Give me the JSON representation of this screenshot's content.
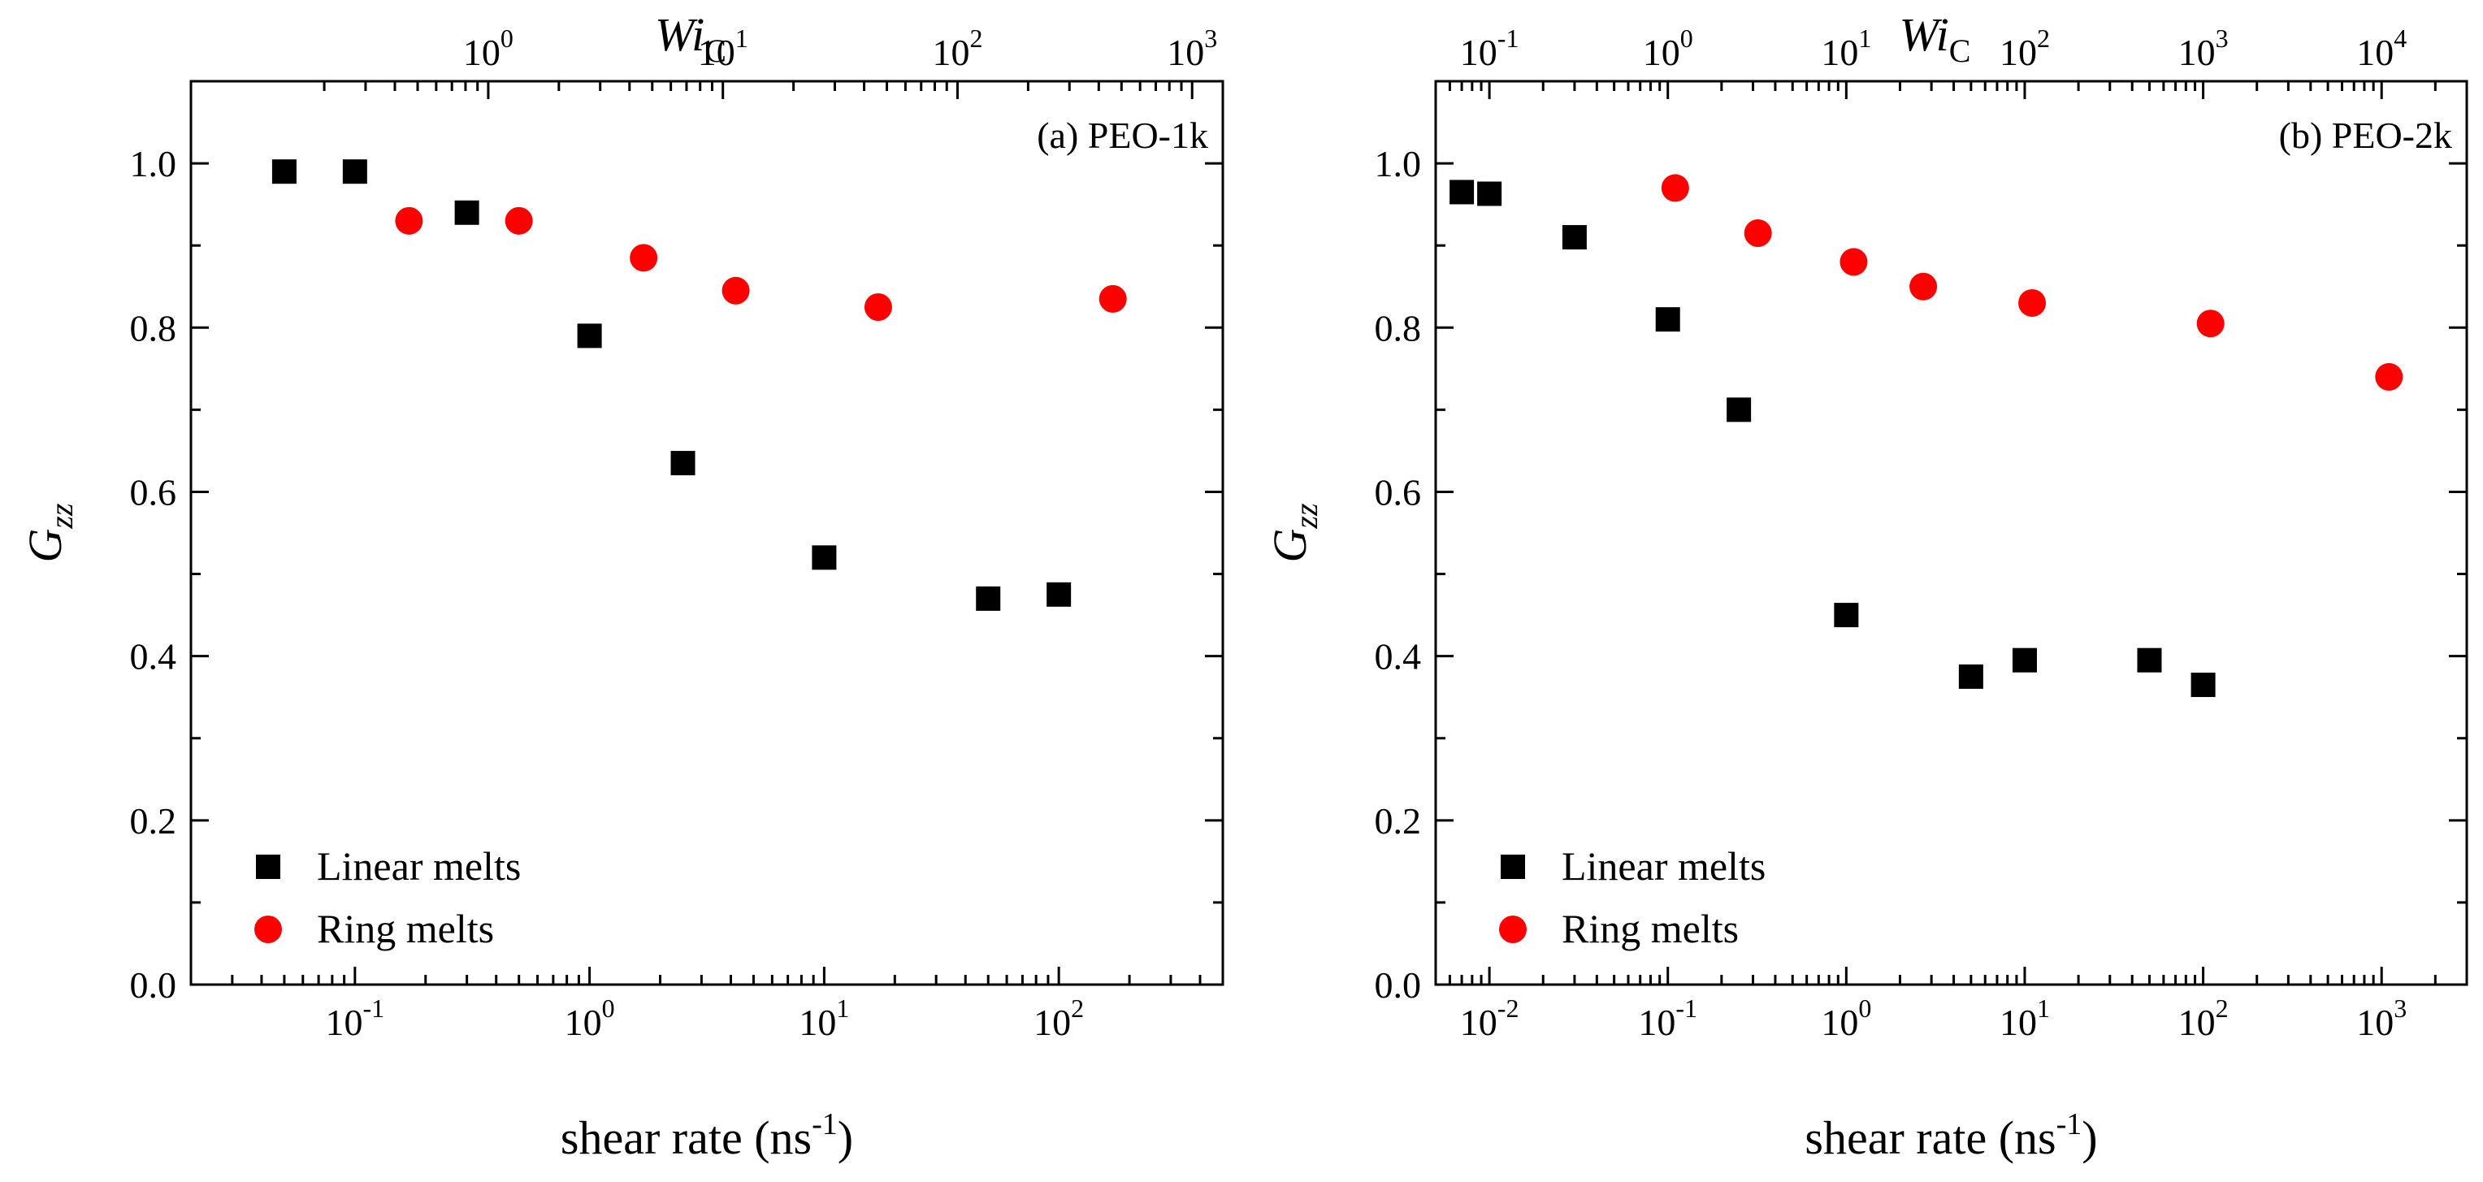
{
  "chart_data": [
    {
      "type": "scatter",
      "panel_label": "(a) PEO-1k",
      "xlabel_pre": "shear rate (ns",
      "xlabel_exp": "-1",
      "xlabel_post": ")",
      "ylabel_main": "G",
      "ylabel_sub": "zz",
      "top_xlabel_main": "Wi",
      "top_xlabel_sub": "C",
      "xscale": "log",
      "xlim": [
        0.02,
        500
      ],
      "ylim": [
        0.0,
        1.1
      ],
      "x_ticks": [
        {
          "value": 0.1,
          "base": "10",
          "exp": "-1"
        },
        {
          "value": 1,
          "base": "10",
          "exp": "0"
        },
        {
          "value": 10,
          "base": "10",
          "exp": "1"
        },
        {
          "value": 100,
          "base": "10",
          "exp": "2"
        }
      ],
      "y_ticks": [
        {
          "value": 0.0,
          "label": "0.0"
        },
        {
          "value": 0.2,
          "label": "0.2"
        },
        {
          "value": 0.4,
          "label": "0.4"
        },
        {
          "value": 0.6,
          "label": "0.6"
        },
        {
          "value": 0.8,
          "label": "0.8"
        },
        {
          "value": 1.0,
          "label": "1.0"
        }
      ],
      "top_ticks": [
        {
          "at_shear_rate": 0.37,
          "base": "10",
          "exp": "0"
        },
        {
          "at_shear_rate": 3.7,
          "base": "10",
          "exp": "1"
        },
        {
          "at_shear_rate": 37,
          "base": "10",
          "exp": "2"
        },
        {
          "at_shear_rate": 370,
          "base": "10",
          "exp": "3"
        }
      ],
      "legend_position": "bottom-left",
      "series": [
        {
          "name": "Linear melts",
          "marker": "square",
          "color": "#000000",
          "x": [
            0.05,
            0.1,
            0.3,
            1.0,
            2.5,
            10,
            50,
            100
          ],
          "y": [
            0.99,
            0.99,
            0.94,
            0.79,
            0.635,
            0.52,
            0.47,
            0.475
          ]
        },
        {
          "name": "Ring melts",
          "marker": "circle",
          "color": "#ff0000",
          "x": [
            0.17,
            0.5,
            1.7,
            4.2,
            17,
            170
          ],
          "y": [
            0.93,
            0.93,
            0.885,
            0.845,
            0.825,
            0.835
          ]
        }
      ]
    },
    {
      "type": "scatter",
      "panel_label": "(b) PEO-2k",
      "xlabel_pre": "shear rate (ns",
      "xlabel_exp": "-1",
      "xlabel_post": ")",
      "ylabel_main": "G",
      "ylabel_sub": "zz",
      "top_xlabel_main": "Wi",
      "top_xlabel_sub": "C",
      "xscale": "log",
      "xlim": [
        0.005,
        3000
      ],
      "ylim": [
        0.0,
        1.1
      ],
      "x_ticks": [
        {
          "value": 0.01,
          "base": "10",
          "exp": "-2"
        },
        {
          "value": 0.1,
          "base": "10",
          "exp": "-1"
        },
        {
          "value": 1,
          "base": "10",
          "exp": "0"
        },
        {
          "value": 10,
          "base": "10",
          "exp": "1"
        },
        {
          "value": 100,
          "base": "10",
          "exp": "2"
        },
        {
          "value": 1000,
          "base": "10",
          "exp": "3"
        }
      ],
      "y_ticks": [
        {
          "value": 0.0,
          "label": "0.0"
        },
        {
          "value": 0.2,
          "label": "0.2"
        },
        {
          "value": 0.4,
          "label": "0.4"
        },
        {
          "value": 0.6,
          "label": "0.6"
        },
        {
          "value": 0.8,
          "label": "0.8"
        },
        {
          "value": 1.0,
          "label": "1.0"
        }
      ],
      "top_ticks": [
        {
          "at_shear_rate": 0.01,
          "base": "10",
          "exp": "-1"
        },
        {
          "at_shear_rate": 0.1,
          "base": "10",
          "exp": "0"
        },
        {
          "at_shear_rate": 1,
          "base": "10",
          "exp": "1"
        },
        {
          "at_shear_rate": 10,
          "base": "10",
          "exp": "2"
        },
        {
          "at_shear_rate": 100,
          "base": "10",
          "exp": "3"
        },
        {
          "at_shear_rate": 1000,
          "base": "10",
          "exp": "4"
        }
      ],
      "legend_position": "bottom-left",
      "series": [
        {
          "name": "Linear melts",
          "marker": "square",
          "color": "#000000",
          "x": [
            0.007,
            0.01,
            0.03,
            0.1,
            0.25,
            1.0,
            5,
            10,
            50,
            100
          ],
          "y": [
            0.965,
            0.963,
            0.91,
            0.81,
            0.7,
            0.45,
            0.375,
            0.395,
            0.395,
            0.365
          ]
        },
        {
          "name": "Ring melts",
          "marker": "circle",
          "color": "#ff0000",
          "x": [
            0.11,
            0.32,
            1.1,
            2.7,
            11,
            110,
            1100
          ],
          "y": [
            0.97,
            0.915,
            0.88,
            0.85,
            0.83,
            0.805,
            0.74
          ]
        }
      ]
    }
  ]
}
